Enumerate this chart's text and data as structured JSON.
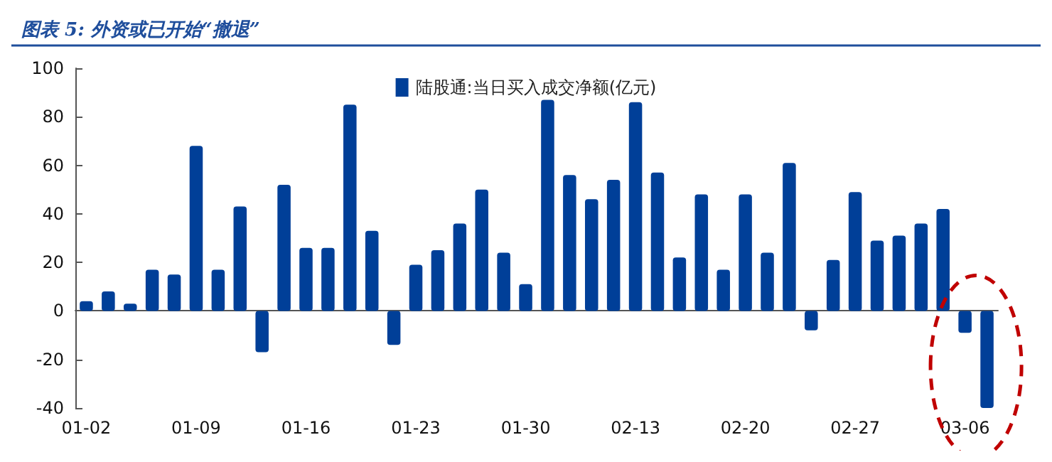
{
  "chart_data": {
    "type": "bar",
    "title": "图表 5: 外资或已开始“撤退”",
    "categories": [
      "01-02",
      null,
      null,
      null,
      null,
      "01-09",
      null,
      null,
      null,
      null,
      "01-16",
      null,
      null,
      null,
      null,
      "01-23",
      null,
      null,
      null,
      null,
      "01-30",
      null,
      null,
      null,
      null,
      "02-13",
      null,
      null,
      null,
      null,
      "02-20",
      null,
      null,
      null,
      null,
      "02-27",
      null,
      null,
      null,
      null,
      "03-06",
      null
    ],
    "series": [
      {
        "name": "陆股通:当日买入成交净额(亿元)",
        "color": "#003f98",
        "values": [
          4,
          8,
          3,
          17,
          15,
          68,
          17,
          43,
          -17,
          52,
          26,
          26,
          85,
          33,
          -14,
          19,
          25,
          36,
          50,
          24,
          11,
          87,
          56,
          46,
          54,
          86,
          57,
          22,
          48,
          17,
          48,
          24,
          61,
          -8,
          21,
          49,
          29,
          31,
          36,
          42,
          -9,
          -40
        ]
      }
    ],
    "ylim": [
      -40,
      100
    ],
    "yticks": [
      -40,
      -20,
      0,
      20,
      40,
      60,
      80,
      100
    ],
    "legend": "top"
  }
}
